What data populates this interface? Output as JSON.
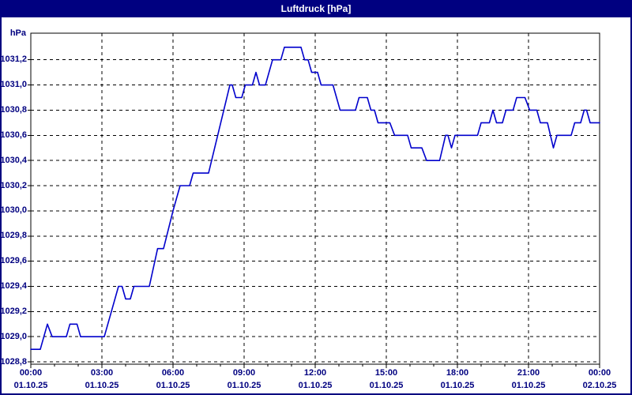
{
  "window": {
    "title": "Luftdruck [hPa]"
  },
  "colors": {
    "frame_border": "#000080",
    "titlebar_bg": "#000080",
    "titlebar_text": "#ffffff",
    "background": "#ffffff",
    "plot_border": "#000000",
    "grid": "#000000",
    "line": "#0000cc",
    "axis_label": "#000080"
  },
  "chart_data": {
    "type": "line",
    "title": "Luftdruck [hPa]",
    "ylabel": "hPa",
    "xlabel": "",
    "ylim": [
      1028.8,
      1031.2
    ],
    "y_tick_step": 0.2,
    "y_tick_labels": [
      "1031,2",
      "1031,0",
      "1030,8",
      "1030,6",
      "1030,4",
      "1030,2",
      "1030,0",
      "1029,8",
      "1029,6",
      "1029,4",
      "1029,2",
      "1029,0",
      "1028,8"
    ],
    "x_hours_range": [
      0,
      24
    ],
    "x_major_tick_every_hours": 3,
    "x_minor_tick_every_hours": 1,
    "x_ticks": [
      {
        "hour": 0,
        "time": "00:00",
        "date": "01.10.25"
      },
      {
        "hour": 3,
        "time": "03:00",
        "date": "01.10.25"
      },
      {
        "hour": 6,
        "time": "06:00",
        "date": "01.10.25"
      },
      {
        "hour": 9,
        "time": "09:00",
        "date": "01.10.25"
      },
      {
        "hour": 12,
        "time": "12:00",
        "date": "01.10.25"
      },
      {
        "hour": 15,
        "time": "15:00",
        "date": "01.10.25"
      },
      {
        "hour": 18,
        "time": "18:00",
        "date": "01.10.25"
      },
      {
        "hour": 21,
        "time": "21:00",
        "date": "01.10.25"
      },
      {
        "hour": 24,
        "time": "00:00",
        "date": "02.10.25"
      }
    ],
    "grid": true,
    "legend_position": "none",
    "series": [
      {
        "name": "Luftdruck",
        "unit": "hPa",
        "points": [
          [
            0,
            1028.9
          ],
          [
            0.4,
            1028.9
          ],
          [
            0.7,
            1029.1
          ],
          [
            0.9,
            1029.0
          ],
          [
            1.5,
            1029.0
          ],
          [
            1.65,
            1029.1
          ],
          [
            1.95,
            1029.1
          ],
          [
            2.1,
            1029.0
          ],
          [
            3.1,
            1029.0
          ],
          [
            3.7,
            1029.4
          ],
          [
            3.85,
            1029.4
          ],
          [
            4.0,
            1029.3
          ],
          [
            4.2,
            1029.3
          ],
          [
            4.35,
            1029.4
          ],
          [
            5.0,
            1029.4
          ],
          [
            5.35,
            1029.7
          ],
          [
            5.6,
            1029.7
          ],
          [
            6.0,
            1030.0
          ],
          [
            6.3,
            1030.2
          ],
          [
            6.7,
            1030.2
          ],
          [
            6.85,
            1030.3
          ],
          [
            7.5,
            1030.3
          ],
          [
            8.4,
            1031.0
          ],
          [
            8.5,
            1031.0
          ],
          [
            8.65,
            1030.9
          ],
          [
            8.9,
            1030.9
          ],
          [
            9.05,
            1031.0
          ],
          [
            9.35,
            1031.0
          ],
          [
            9.5,
            1031.1
          ],
          [
            9.65,
            1031.0
          ],
          [
            9.9,
            1031.0
          ],
          [
            10.05,
            1031.1
          ],
          [
            10.2,
            1031.2
          ],
          [
            10.55,
            1031.2
          ],
          [
            10.7,
            1031.3
          ],
          [
            11.4,
            1031.3
          ],
          [
            11.55,
            1031.2
          ],
          [
            11.7,
            1031.2
          ],
          [
            11.85,
            1031.1
          ],
          [
            12.1,
            1031.1
          ],
          [
            12.25,
            1031.0
          ],
          [
            12.75,
            1031.0
          ],
          [
            12.9,
            1030.9
          ],
          [
            13.05,
            1030.8
          ],
          [
            13.7,
            1030.8
          ],
          [
            13.85,
            1030.9
          ],
          [
            14.2,
            1030.9
          ],
          [
            14.35,
            1030.8
          ],
          [
            14.5,
            1030.8
          ],
          [
            14.65,
            1030.7
          ],
          [
            15.15,
            1030.7
          ],
          [
            15.35,
            1030.6
          ],
          [
            15.9,
            1030.6
          ],
          [
            16.05,
            1030.5
          ],
          [
            16.5,
            1030.5
          ],
          [
            16.7,
            1030.4
          ],
          [
            17.25,
            1030.4
          ],
          [
            17.5,
            1030.6
          ],
          [
            17.6,
            1030.6
          ],
          [
            17.75,
            1030.5
          ],
          [
            17.9,
            1030.6
          ],
          [
            18.85,
            1030.6
          ],
          [
            19.0,
            1030.7
          ],
          [
            19.35,
            1030.7
          ],
          [
            19.5,
            1030.8
          ],
          [
            19.65,
            1030.7
          ],
          [
            19.9,
            1030.7
          ],
          [
            20.05,
            1030.8
          ],
          [
            20.35,
            1030.8
          ],
          [
            20.5,
            1030.9
          ],
          [
            20.85,
            1030.9
          ],
          [
            21.05,
            1030.8
          ],
          [
            21.35,
            1030.8
          ],
          [
            21.5,
            1030.7
          ],
          [
            21.8,
            1030.7
          ],
          [
            22.05,
            1030.5
          ],
          [
            22.2,
            1030.6
          ],
          [
            22.8,
            1030.6
          ],
          [
            22.95,
            1030.7
          ],
          [
            23.2,
            1030.7
          ],
          [
            23.35,
            1030.8
          ],
          [
            23.45,
            1030.8
          ],
          [
            23.6,
            1030.7
          ],
          [
            24,
            1030.7
          ]
        ]
      }
    ]
  }
}
